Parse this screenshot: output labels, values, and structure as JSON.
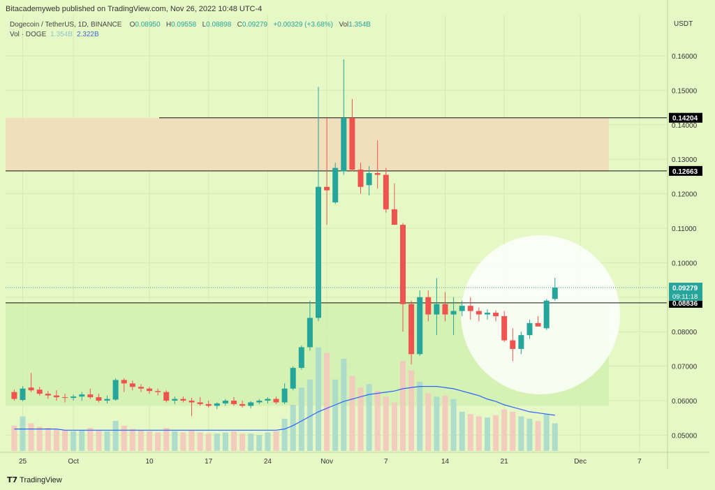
{
  "header": {
    "published": "Bitacademyweb published on TradingView.com, Nov 26, 2022 10:48 UTC-4",
    "symbol": "Dogecoin / TetherUS, 1D, BINANCE",
    "ohlc": {
      "open_label": "O",
      "open": "0.08950",
      "high_label": "H",
      "high": "0.09558",
      "low_label": "L",
      "low": "0.08898",
      "close_label": "C",
      "close": "0.09279",
      "change": "+0.00329 (+3.68%)",
      "vol_label": "Vol",
      "vol": "1.354B"
    },
    "volume_indicator": {
      "label": "Vol · DOGE",
      "vol": "1.354B",
      "ma": "2.322B"
    }
  },
  "brand": {
    "logo": "T7",
    "name": "TradingView"
  },
  "colors": {
    "background": "#e6f8c6",
    "up": "#26a69a",
    "down": "#ef5350",
    "supply_zone": "#f0dcb8",
    "demand_zone": "#d3f0b0",
    "volume_up": "#a9d9cc",
    "volume_down": "#f4c6bd",
    "volume_ma": "#2962ff",
    "price_label_bg": "#000000",
    "last_price_label_bg": "#26a69a"
  },
  "chart_data": {
    "type": "candlestick",
    "axis_currency": "USDT",
    "y_ticks": [
      0.05,
      0.06,
      0.07,
      0.08,
      0.09,
      0.1,
      0.11,
      0.12,
      0.13,
      0.14,
      0.15,
      0.16
    ],
    "y_tick_labels": [
      "0.05000",
      "0.06000",
      "0.07000",
      "0.08000",
      "0.09000",
      "0.10000",
      "0.11000",
      "0.12000",
      "0.13000",
      "0.14000",
      "0.15000",
      "0.16000"
    ],
    "x_tick_labels": [
      "25",
      "Oct",
      "10",
      "17",
      "24",
      "Nov",
      "7",
      "14",
      "21",
      "Dec",
      "7"
    ],
    "x_tick_index": [
      1,
      7,
      16,
      23,
      30,
      37,
      44,
      51,
      58,
      67,
      74
    ],
    "grid": true,
    "horizontal_levels": [
      {
        "label": "0.14204",
        "value": 0.14204
      },
      {
        "label": "0.12663",
        "value": 0.12663
      },
      {
        "label": "0.08836",
        "value": 0.08836
      }
    ],
    "last_price": {
      "value": 0.09279,
      "label": "0.09279",
      "countdown": "09:11:18"
    },
    "zones": [
      {
        "name": "supply",
        "from": 0.1265,
        "to": 0.142
      },
      {
        "name": "demand",
        "from": 0.0585,
        "to": 0.0883
      }
    ],
    "candles": [
      {
        "o": 0.0625,
        "h": 0.0632,
        "l": 0.06,
        "c": 0.0605
      },
      {
        "o": 0.0602,
        "h": 0.0642,
        "l": 0.0598,
        "c": 0.0635
      },
      {
        "o": 0.0638,
        "h": 0.068,
        "l": 0.0625,
        "c": 0.063
      },
      {
        "o": 0.0632,
        "h": 0.064,
        "l": 0.0615,
        "c": 0.062
      },
      {
        "o": 0.062,
        "h": 0.0628,
        "l": 0.0605,
        "c": 0.0615
      },
      {
        "o": 0.0615,
        "h": 0.063,
        "l": 0.06,
        "c": 0.061
      },
      {
        "o": 0.061,
        "h": 0.062,
        "l": 0.0595,
        "c": 0.0608
      },
      {
        "o": 0.0608,
        "h": 0.0618,
        "l": 0.06,
        "c": 0.0612
      },
      {
        "o": 0.0612,
        "h": 0.0625,
        "l": 0.06,
        "c": 0.0618
      },
      {
        "o": 0.0618,
        "h": 0.0635,
        "l": 0.0605,
        "c": 0.061
      },
      {
        "o": 0.061,
        "h": 0.062,
        "l": 0.0595,
        "c": 0.06
      },
      {
        "o": 0.06,
        "h": 0.0615,
        "l": 0.0592,
        "c": 0.0605
      },
      {
        "o": 0.0603,
        "h": 0.0665,
        "l": 0.06,
        "c": 0.066
      },
      {
        "o": 0.066,
        "h": 0.0665,
        "l": 0.0625,
        "c": 0.065
      },
      {
        "o": 0.065,
        "h": 0.0658,
        "l": 0.063,
        "c": 0.064
      },
      {
        "o": 0.064,
        "h": 0.0648,
        "l": 0.0625,
        "c": 0.0635
      },
      {
        "o": 0.0635,
        "h": 0.064,
        "l": 0.062,
        "c": 0.0628
      },
      {
        "o": 0.0628,
        "h": 0.0635,
        "l": 0.0615,
        "c": 0.0625
      },
      {
        "o": 0.0625,
        "h": 0.063,
        "l": 0.0595,
        "c": 0.06
      },
      {
        "o": 0.06,
        "h": 0.0612,
        "l": 0.059,
        "c": 0.0605
      },
      {
        "o": 0.0605,
        "h": 0.0612,
        "l": 0.0595,
        "c": 0.06
      },
      {
        "o": 0.06,
        "h": 0.0608,
        "l": 0.0555,
        "c": 0.0595
      },
      {
        "o": 0.0595,
        "h": 0.061,
        "l": 0.0585,
        "c": 0.059
      },
      {
        "o": 0.059,
        "h": 0.06,
        "l": 0.058,
        "c": 0.0585
      },
      {
        "o": 0.0585,
        "h": 0.0595,
        "l": 0.0575,
        "c": 0.0592
      },
      {
        "o": 0.0592,
        "h": 0.0605,
        "l": 0.0585,
        "c": 0.06
      },
      {
        "o": 0.06,
        "h": 0.061,
        "l": 0.0585,
        "c": 0.059
      },
      {
        "o": 0.059,
        "h": 0.06,
        "l": 0.058,
        "c": 0.0585
      },
      {
        "o": 0.0585,
        "h": 0.0598,
        "l": 0.0578,
        "c": 0.0595
      },
      {
        "o": 0.0595,
        "h": 0.0605,
        "l": 0.059,
        "c": 0.06
      },
      {
        "o": 0.06,
        "h": 0.061,
        "l": 0.0592,
        "c": 0.0605
      },
      {
        "o": 0.0605,
        "h": 0.0612,
        "l": 0.059,
        "c": 0.0595
      },
      {
        "o": 0.0595,
        "h": 0.065,
        "l": 0.059,
        "c": 0.0635
      },
      {
        "o": 0.0635,
        "h": 0.07,
        "l": 0.063,
        "c": 0.0695
      },
      {
        "o": 0.0695,
        "h": 0.076,
        "l": 0.069,
        "c": 0.0755
      },
      {
        "o": 0.0755,
        "h": 0.089,
        "l": 0.0745,
        "c": 0.084
      },
      {
        "o": 0.084,
        "h": 0.151,
        "l": 0.083,
        "c": 0.122
      },
      {
        "o": 0.122,
        "h": 0.142,
        "l": 0.111,
        "c": 0.121
      },
      {
        "o": 0.1175,
        "h": 0.129,
        "l": 0.117,
        "c": 0.1275
      },
      {
        "o": 0.1265,
        "h": 0.159,
        "l": 0.1255,
        "c": 0.142
      },
      {
        "o": 0.142,
        "h": 0.1475,
        "l": 0.1265,
        "c": 0.127
      },
      {
        "o": 0.127,
        "h": 0.129,
        "l": 0.12,
        "c": 0.122
      },
      {
        "o": 0.1225,
        "h": 0.128,
        "l": 0.1195,
        "c": 0.126
      },
      {
        "o": 0.126,
        "h": 0.1355,
        "l": 0.1215,
        "c": 0.1255
      },
      {
        "o": 0.1255,
        "h": 0.1275,
        "l": 0.1145,
        "c": 0.1155
      },
      {
        "o": 0.1155,
        "h": 0.123,
        "l": 0.1115,
        "c": 0.111
      },
      {
        "o": 0.111,
        "h": 0.1115,
        "l": 0.08,
        "c": 0.088
      },
      {
        "o": 0.088,
        "h": 0.089,
        "l": 0.0705,
        "c": 0.0735
      },
      {
        "o": 0.0735,
        "h": 0.092,
        "l": 0.073,
        "c": 0.09
      },
      {
        "o": 0.09,
        "h": 0.092,
        "l": 0.083,
        "c": 0.085
      },
      {
        "o": 0.085,
        "h": 0.0955,
        "l": 0.079,
        "c": 0.088
      },
      {
        "o": 0.088,
        "h": 0.0915,
        "l": 0.083,
        "c": 0.085
      },
      {
        "o": 0.085,
        "h": 0.09,
        "l": 0.079,
        "c": 0.086
      },
      {
        "o": 0.086,
        "h": 0.089,
        "l": 0.0845,
        "c": 0.0875
      },
      {
        "o": 0.0875,
        "h": 0.09,
        "l": 0.0835,
        "c": 0.086
      },
      {
        "o": 0.086,
        "h": 0.087,
        "l": 0.083,
        "c": 0.085
      },
      {
        "o": 0.085,
        "h": 0.0865,
        "l": 0.0835,
        "c": 0.0855
      },
      {
        "o": 0.0855,
        "h": 0.0862,
        "l": 0.083,
        "c": 0.0845
      },
      {
        "o": 0.0845,
        "h": 0.086,
        "l": 0.077,
        "c": 0.0775
      },
      {
        "o": 0.0775,
        "h": 0.081,
        "l": 0.0715,
        "c": 0.075
      },
      {
        "o": 0.075,
        "h": 0.08,
        "l": 0.0735,
        "c": 0.079
      },
      {
        "o": 0.079,
        "h": 0.0835,
        "l": 0.078,
        "c": 0.0825
      },
      {
        "o": 0.0825,
        "h": 0.0845,
        "l": 0.0815,
        "c": 0.0815
      },
      {
        "o": 0.081,
        "h": 0.0895,
        "l": 0.0805,
        "c": 0.089
      },
      {
        "o": 0.0895,
        "h": 0.0956,
        "l": 0.089,
        "c": 0.0928
      }
    ],
    "volume_relative": [
      0.22,
      0.3,
      0.24,
      0.21,
      0.2,
      0.19,
      0.18,
      0.17,
      0.18,
      0.2,
      0.18,
      0.17,
      0.26,
      0.22,
      0.19,
      0.18,
      0.17,
      0.16,
      0.2,
      0.17,
      0.16,
      0.18,
      0.16,
      0.15,
      0.15,
      0.16,
      0.17,
      0.15,
      0.15,
      0.14,
      0.16,
      0.17,
      0.28,
      0.4,
      0.55,
      0.62,
      0.9,
      0.85,
      0.62,
      0.8,
      0.65,
      0.55,
      0.58,
      0.52,
      0.47,
      0.42,
      0.78,
      0.7,
      0.6,
      0.5,
      0.47,
      0.48,
      0.45,
      0.34,
      0.32,
      0.3,
      0.29,
      0.31,
      0.36,
      0.34,
      0.3,
      0.28,
      0.26,
      0.32,
      0.24
    ],
    "volume_ma_relative": [
      0.19,
      0.19,
      0.19,
      0.19,
      0.19,
      0.19,
      0.18,
      0.18,
      0.18,
      0.18,
      0.18,
      0.18,
      0.18,
      0.18,
      0.18,
      0.18,
      0.18,
      0.18,
      0.18,
      0.18,
      0.18,
      0.18,
      0.18,
      0.18,
      0.18,
      0.18,
      0.18,
      0.18,
      0.18,
      0.18,
      0.18,
      0.18,
      0.19,
      0.22,
      0.26,
      0.3,
      0.34,
      0.37,
      0.4,
      0.43,
      0.45,
      0.47,
      0.49,
      0.5,
      0.51,
      0.52,
      0.54,
      0.55,
      0.56,
      0.56,
      0.56,
      0.55,
      0.54,
      0.52,
      0.5,
      0.48,
      0.45,
      0.43,
      0.4,
      0.38,
      0.36,
      0.34,
      0.33,
      0.32,
      0.31
    ]
  }
}
